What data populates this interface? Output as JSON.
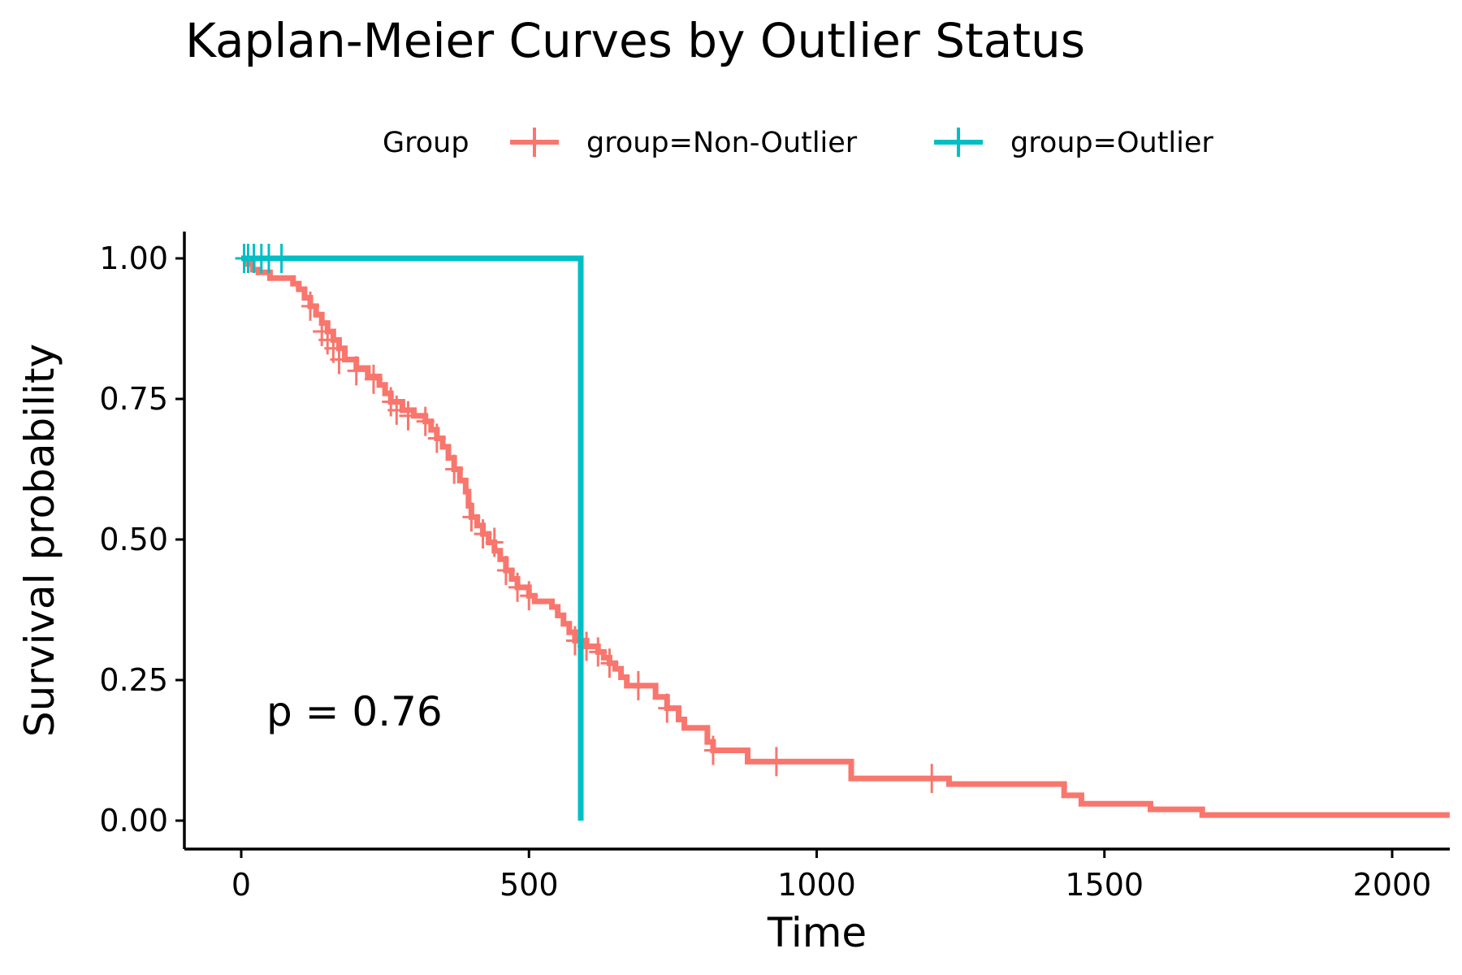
{
  "chart_data": {
    "type": "line",
    "title": "Kaplan-Meier Curves by Outlier Status",
    "xlabel": "Time",
    "ylabel": "Survival probability",
    "xlim": [
      -100,
      2100
    ],
    "ylim": [
      -0.05,
      1.05
    ],
    "x_ticks": [
      0,
      500,
      1000,
      1500,
      2000
    ],
    "x_tick_labels": [
      "0",
      "500",
      "1000",
      "1500",
      "2000"
    ],
    "y_ticks": [
      0,
      0.25,
      0.5,
      0.75,
      1
    ],
    "y_tick_labels": [
      "0.00",
      "0.25",
      "0.50",
      "0.75",
      "1.00"
    ],
    "grid": false,
    "legend": {
      "title": "Group",
      "placement": "top",
      "entries": [
        "group=Non-Outlier",
        "group=Outlier"
      ]
    },
    "annotation": "p = 0.76",
    "series": [
      {
        "name": "group=Non-Outlier",
        "color": "#F8766D",
        "steps": [
          [
            0,
            1.0
          ],
          [
            10,
            0.99
          ],
          [
            20,
            0.98
          ],
          [
            30,
            0.975
          ],
          [
            50,
            0.965
          ],
          [
            90,
            0.955
          ],
          [
            100,
            0.945
          ],
          [
            110,
            0.93
          ],
          [
            120,
            0.915
          ],
          [
            130,
            0.9
          ],
          [
            140,
            0.885
          ],
          [
            150,
            0.87
          ],
          [
            160,
            0.855
          ],
          [
            170,
            0.84
          ],
          [
            180,
            0.82
          ],
          [
            200,
            0.805
          ],
          [
            220,
            0.79
          ],
          [
            240,
            0.775
          ],
          [
            250,
            0.76
          ],
          [
            260,
            0.745
          ],
          [
            280,
            0.73
          ],
          [
            300,
            0.72
          ],
          [
            320,
            0.71
          ],
          [
            330,
            0.695
          ],
          [
            340,
            0.68
          ],
          [
            350,
            0.665
          ],
          [
            360,
            0.645
          ],
          [
            370,
            0.625
          ],
          [
            380,
            0.605
          ],
          [
            390,
            0.585
          ],
          [
            395,
            0.56
          ],
          [
            400,
            0.54
          ],
          [
            410,
            0.525
          ],
          [
            420,
            0.51
          ],
          [
            430,
            0.495
          ],
          [
            440,
            0.48
          ],
          [
            450,
            0.465
          ],
          [
            460,
            0.445
          ],
          [
            470,
            0.43
          ],
          [
            480,
            0.415
          ],
          [
            500,
            0.4
          ],
          [
            510,
            0.39
          ],
          [
            540,
            0.38
          ],
          [
            550,
            0.365
          ],
          [
            560,
            0.35
          ],
          [
            570,
            0.335
          ],
          [
            580,
            0.32
          ],
          [
            600,
            0.31
          ],
          [
            620,
            0.3
          ],
          [
            630,
            0.29
          ],
          [
            640,
            0.28
          ],
          [
            650,
            0.27
          ],
          [
            660,
            0.255
          ],
          [
            670,
            0.24
          ],
          [
            720,
            0.22
          ],
          [
            740,
            0.2
          ],
          [
            760,
            0.18
          ],
          [
            770,
            0.165
          ],
          [
            810,
            0.14
          ],
          [
            820,
            0.125
          ],
          [
            880,
            0.105
          ],
          [
            1060,
            0.075
          ],
          [
            1230,
            0.065
          ],
          [
            1430,
            0.045
          ],
          [
            1460,
            0.03
          ],
          [
            1580,
            0.02
          ],
          [
            1670,
            0.01
          ],
          [
            2100,
            0.01
          ]
        ],
        "censored": [
          [
            120,
            0.915
          ],
          [
            140,
            0.87
          ],
          [
            150,
            0.855
          ],
          [
            160,
            0.84
          ],
          [
            170,
            0.82
          ],
          [
            200,
            0.8
          ],
          [
            230,
            0.785
          ],
          [
            260,
            0.745
          ],
          [
            270,
            0.73
          ],
          [
            290,
            0.72
          ],
          [
            320,
            0.71
          ],
          [
            340,
            0.68
          ],
          [
            370,
            0.625
          ],
          [
            400,
            0.54
          ],
          [
            420,
            0.51
          ],
          [
            440,
            0.495
          ],
          [
            460,
            0.445
          ],
          [
            480,
            0.415
          ],
          [
            500,
            0.4
          ],
          [
            580,
            0.32
          ],
          [
            600,
            0.31
          ],
          [
            620,
            0.3
          ],
          [
            640,
            0.28
          ],
          [
            690,
            0.24
          ],
          [
            740,
            0.2
          ],
          [
            820,
            0.125
          ],
          [
            930,
            0.105
          ],
          [
            1200,
            0.075
          ]
        ]
      },
      {
        "name": "group=Outlier",
        "color": "#00BFC4",
        "steps": [
          [
            0,
            1.0
          ],
          [
            590,
            1.0
          ],
          [
            590,
            0.0
          ]
        ],
        "censored": [
          [
            5,
            1.0
          ],
          [
            12,
            1.0
          ],
          [
            22,
            1.0
          ],
          [
            35,
            1.0
          ],
          [
            48,
            1.0
          ],
          [
            70,
            1.0
          ]
        ]
      }
    ]
  }
}
